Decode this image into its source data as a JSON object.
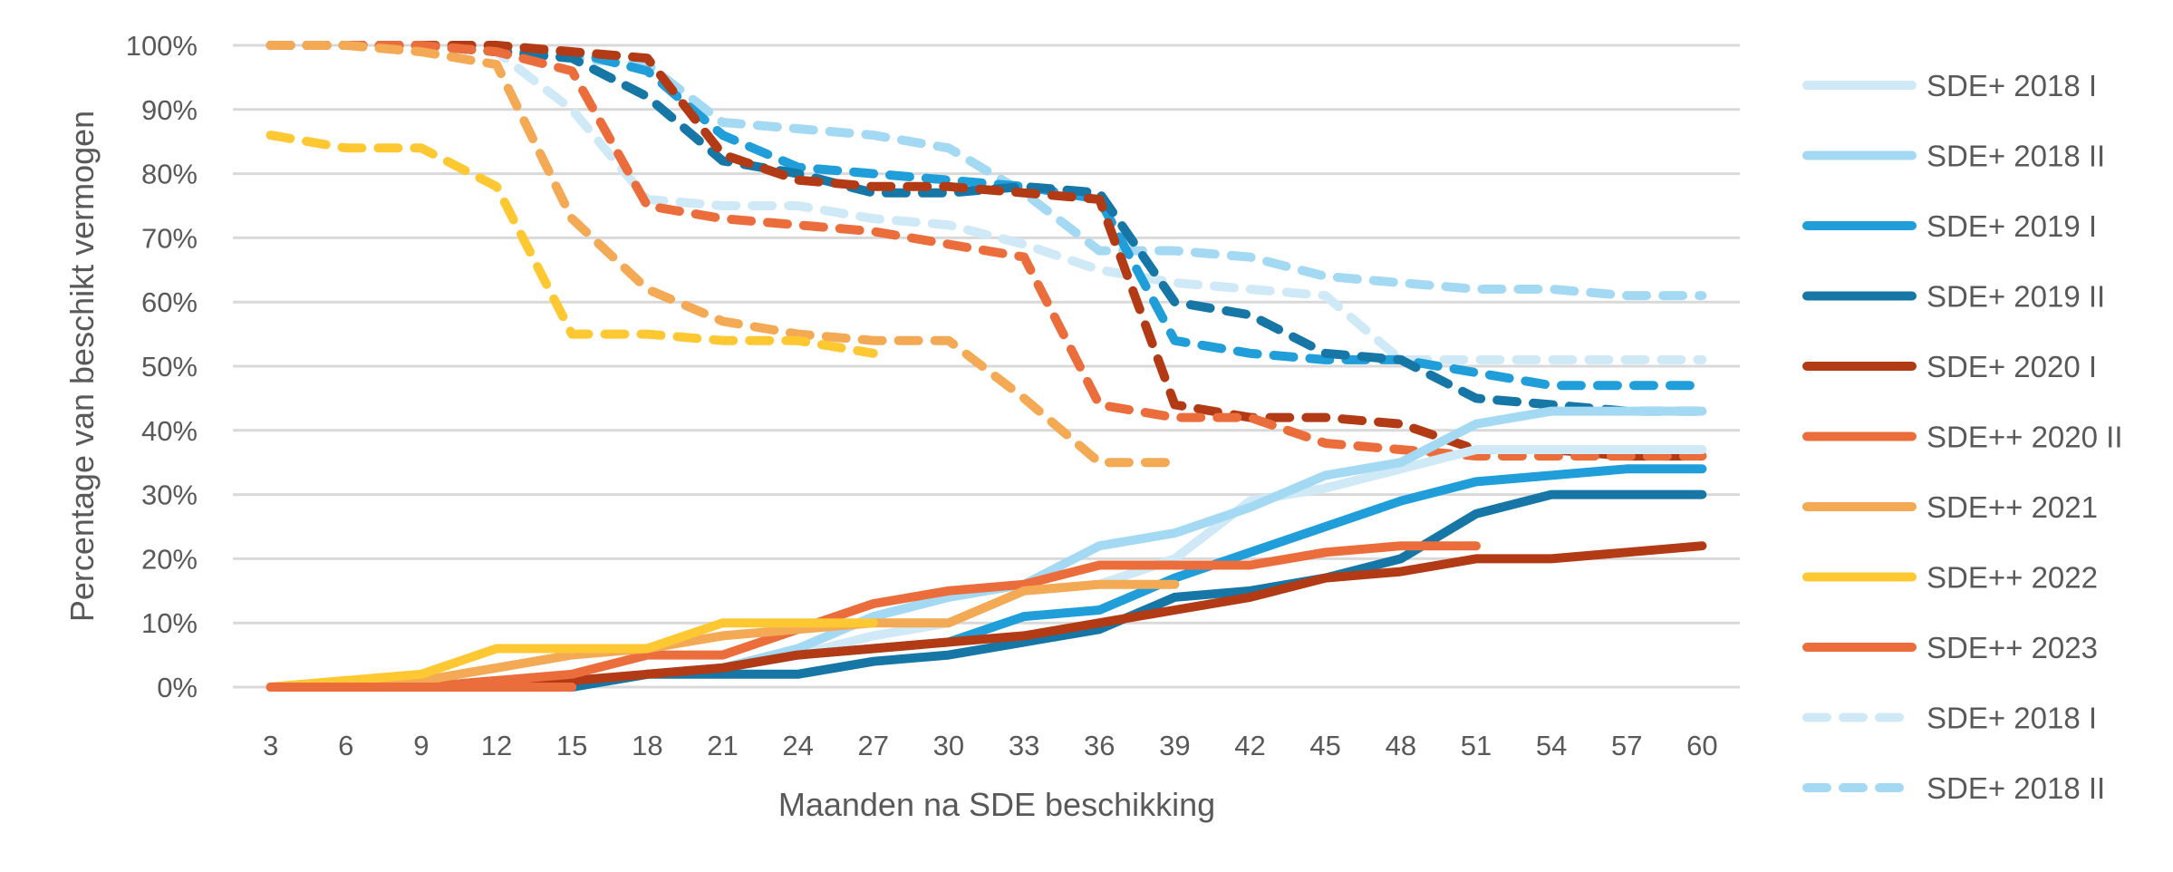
{
  "chart_data": {
    "type": "line",
    "title": "",
    "xlabel": "Maanden na SDE beschikking",
    "ylabel": "Percentage van beschikt vermogen",
    "ylim": [
      0,
      100
    ],
    "y_tick_format": "percent",
    "y_ticks": [
      "0%",
      "10%",
      "20%",
      "30%",
      "40%",
      "50%",
      "60%",
      "70%",
      "80%",
      "90%",
      "100%"
    ],
    "y_tick_values": [
      0,
      10,
      20,
      30,
      40,
      50,
      60,
      70,
      80,
      90,
      100
    ],
    "x": [
      "3",
      "6",
      "9",
      "12",
      "15",
      "18",
      "21",
      "24",
      "27",
      "30",
      "33",
      "36",
      "39",
      "42",
      "45",
      "48",
      "51",
      "54",
      "57",
      "60"
    ],
    "grid": "horizontal",
    "legend_position": "right",
    "series": [
      {
        "name": "SDE+ 2018 I",
        "style": "solid",
        "color": "#cfe9f7",
        "values": [
          0,
          0,
          0,
          0,
          0,
          2,
          3,
          5,
          8,
          10,
          15,
          16,
          20,
          29,
          31,
          34,
          37,
          37,
          37,
          37
        ]
      },
      {
        "name": "SDE+ 2018 II",
        "style": "solid",
        "color": "#a3d9f2",
        "values": [
          0,
          0,
          0,
          0,
          0,
          2,
          3,
          6,
          11,
          14,
          16,
          22,
          24,
          28,
          33,
          35,
          41,
          43,
          43,
          43
        ]
      },
      {
        "name": "SDE+ 2019 I",
        "style": "solid",
        "color": "#1f9ed9",
        "values": [
          0,
          0,
          0,
          0,
          0,
          2,
          3,
          5,
          6,
          7,
          11,
          12,
          17,
          21,
          25,
          29,
          32,
          33,
          34,
          34
        ]
      },
      {
        "name": "SDE+ 2019 II",
        "style": "solid",
        "color": "#1676a5",
        "values": [
          0,
          0,
          0,
          0,
          0,
          2,
          2,
          2,
          4,
          5,
          7,
          9,
          14,
          15,
          17,
          20,
          27,
          30,
          30,
          30
        ]
      },
      {
        "name": "SDE+ 2020 I",
        "style": "solid",
        "color": "#b23a14",
        "values": [
          0,
          0,
          0,
          1,
          1,
          2,
          3,
          5,
          6,
          7,
          8,
          10,
          12,
          14,
          17,
          18,
          20,
          20,
          21,
          22
        ]
      },
      {
        "name": "SDE++ 2020 II",
        "style": "solid",
        "color": "#ec6d3c",
        "values": [
          0,
          0,
          0,
          1,
          2,
          5,
          5,
          9,
          13,
          15,
          16,
          19,
          19,
          19,
          21,
          22,
          22,
          null,
          null,
          null
        ]
      },
      {
        "name": "SDE++ 2021",
        "style": "solid",
        "color": "#f4a954",
        "values": [
          0,
          1,
          1,
          3,
          5,
          6,
          8,
          9,
          10,
          10,
          15,
          16,
          16,
          null,
          null,
          null,
          null,
          null,
          null,
          null
        ]
      },
      {
        "name": "SDE++ 2022",
        "style": "solid",
        "color": "#fec832",
        "values": [
          0,
          1,
          2,
          6,
          6,
          6,
          10,
          10,
          10,
          null,
          null,
          null,
          null,
          null,
          null,
          null,
          null,
          null,
          null,
          null
        ]
      },
      {
        "name": "SDE++ 2023",
        "style": "solid",
        "color": "#ec6d3c",
        "values": [
          0,
          0,
          0,
          0,
          0,
          null,
          null,
          null,
          null,
          null,
          null,
          null,
          null,
          null,
          null,
          null,
          null,
          null,
          null,
          null
        ]
      },
      {
        "name": "SDE+ 2018 I",
        "style": "dashed",
        "color": "#cfe9f7",
        "values": [
          100,
          100,
          100,
          99,
          90,
          76,
          75,
          75,
          73,
          72,
          69,
          65,
          63,
          62,
          61,
          51,
          51,
          51,
          51,
          51
        ]
      },
      {
        "name": "SDE+ 2018 II",
        "style": "dashed",
        "color": "#a3d9f2",
        "values": [
          100,
          100,
          100,
          99,
          98,
          97,
          88,
          87,
          86,
          84,
          77,
          68,
          68,
          67,
          64,
          63,
          62,
          62,
          61,
          61
        ]
      },
      {
        "name": "SDE+ 2019 I",
        "style": "dashed",
        "color": "#1f9ed9",
        "in_legend": false,
        "values": [
          100,
          100,
          100,
          99,
          99,
          96,
          86,
          81,
          80,
          79,
          78,
          76,
          54,
          52,
          51,
          51,
          49,
          47,
          47,
          47
        ]
      },
      {
        "name": "SDE+ 2019 II",
        "style": "dashed",
        "color": "#1676a5",
        "in_legend": false,
        "values": [
          100,
          100,
          100,
          99,
          98,
          92,
          82,
          80,
          77,
          77,
          78,
          77,
          60,
          58,
          52,
          51,
          45,
          44,
          43,
          43
        ]
      },
      {
        "name": "SDE+ 2020 I",
        "style": "dashed",
        "color": "#b23a14",
        "in_legend": false,
        "values": [
          100,
          100,
          100,
          100,
          99,
          98,
          83,
          79,
          78,
          78,
          77,
          76,
          44,
          42,
          42,
          41,
          37,
          37,
          36,
          36
        ]
      },
      {
        "name": "SDE++ 2020 II",
        "style": "dashed",
        "color": "#ec6d3c",
        "in_legend": false,
        "values": [
          100,
          100,
          100,
          99,
          96,
          75,
          73,
          72,
          71,
          69,
          67,
          44,
          42,
          42,
          38,
          37,
          36,
          36,
          36,
          36
        ]
      },
      {
        "name": "SDE++ 2021",
        "style": "dashed",
        "color": "#f4a954",
        "in_legend": false,
        "values": [
          100,
          100,
          99,
          97,
          73,
          62,
          57,
          55,
          54,
          54,
          45,
          35,
          35,
          null,
          null,
          null,
          null,
          null,
          null,
          null
        ]
      },
      {
        "name": "SDE++ 2022",
        "style": "dashed",
        "color": "#fec832",
        "in_legend": false,
        "values": [
          86,
          84,
          84,
          78,
          55,
          55,
          54,
          54,
          52,
          null,
          null,
          null,
          null,
          null,
          null,
          null,
          null,
          null,
          null,
          null
        ]
      }
    ],
    "legend": [
      {
        "label": "SDE+ 2018 I",
        "style": "solid",
        "color": "#cfe9f7"
      },
      {
        "label": "SDE+ 2018 II",
        "style": "solid",
        "color": "#a3d9f2"
      },
      {
        "label": "SDE+ 2019 I",
        "style": "solid",
        "color": "#1f9ed9"
      },
      {
        "label": "SDE+ 2019 II",
        "style": "solid",
        "color": "#1676a5"
      },
      {
        "label": "SDE+ 2020 I",
        "style": "solid",
        "color": "#b23a14"
      },
      {
        "label": "SDE++ 2020 II",
        "style": "solid",
        "color": "#ec6d3c"
      },
      {
        "label": "SDE++ 2021",
        "style": "solid",
        "color": "#f4a954"
      },
      {
        "label": "SDE++ 2022",
        "style": "solid",
        "color": "#fec832"
      },
      {
        "label": "SDE++ 2023",
        "style": "solid",
        "color": "#ec6d3c"
      },
      {
        "label": "SDE+ 2018 I",
        "style": "dashed",
        "color": "#cfe9f7"
      },
      {
        "label": "SDE+ 2018 II",
        "style": "dashed",
        "color": "#a3d9f2"
      }
    ]
  }
}
